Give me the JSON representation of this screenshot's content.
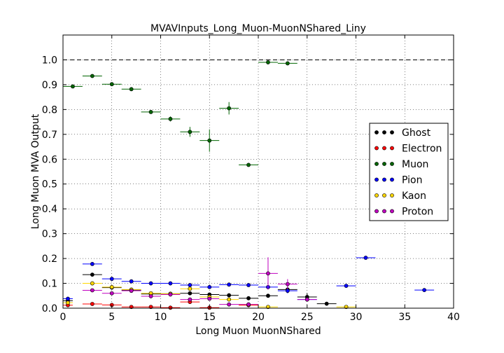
{
  "chart_data": {
    "type": "scatter",
    "title": "MVAVInputs_Long_Muon-MuonNShared_Liny",
    "xlabel": "Long Muon MuonNShared",
    "ylabel": "Long Muon MVA Output",
    "xlim": [
      0,
      40
    ],
    "ylim": [
      0,
      1.1
    ],
    "xticks": [
      "0",
      "5",
      "10",
      "15",
      "20",
      "25",
      "30",
      "35",
      "40"
    ],
    "yticks": [
      "0.0",
      "0.1",
      "0.2",
      "0.3",
      "0.4",
      "0.5",
      "0.6",
      "0.7",
      "0.8",
      "0.9",
      "1.0"
    ],
    "grid": true,
    "reference_line": 1.0,
    "legend_position": "right",
    "series": [
      {
        "name": "Ghost",
        "color": "#000000",
        "points": [
          {
            "x": 0.5,
            "xerr": 0.5,
            "y": 0.03,
            "yerr": 0.005
          },
          {
            "x": 3,
            "xerr": 1,
            "y": 0.135,
            "yerr": 0.005
          },
          {
            "x": 5,
            "xerr": 1,
            "y": 0.083,
            "yerr": 0.004
          },
          {
            "x": 7,
            "xerr": 1,
            "y": 0.073,
            "yerr": 0.004
          },
          {
            "x": 9,
            "xerr": 1,
            "y": 0.057,
            "yerr": 0.004
          },
          {
            "x": 11,
            "xerr": 1,
            "y": 0.058,
            "yerr": 0.004
          },
          {
            "x": 13,
            "xerr": 1,
            "y": 0.06,
            "yerr": 0.005
          },
          {
            "x": 15,
            "xerr": 1,
            "y": 0.055,
            "yerr": 0.006
          },
          {
            "x": 17,
            "xerr": 1,
            "y": 0.052,
            "yerr": 0.006
          },
          {
            "x": 19,
            "xerr": 1,
            "y": 0.04,
            "yerr": 0.006
          },
          {
            "x": 21,
            "xerr": 1,
            "y": 0.05,
            "yerr": 0.008
          },
          {
            "x": 23,
            "xerr": 1,
            "y": 0.075,
            "yerr": 0.01
          },
          {
            "x": 25,
            "xerr": 1,
            "y": 0.045,
            "yerr": 0.015
          },
          {
            "x": 27,
            "xerr": 1,
            "y": 0.018,
            "yerr": 0.005
          }
        ]
      },
      {
        "name": "Electron",
        "color": "#ff0000",
        "points": [
          {
            "x": 0.5,
            "xerr": 0.5,
            "y": 0.012,
            "yerr": 0.003
          },
          {
            "x": 3,
            "xerr": 1,
            "y": 0.017,
            "yerr": 0.003
          },
          {
            "x": 5,
            "xerr": 1,
            "y": 0.013,
            "yerr": 0.003
          },
          {
            "x": 7,
            "xerr": 1,
            "y": 0.005,
            "yerr": 0.002
          },
          {
            "x": 9,
            "xerr": 1,
            "y": 0.005,
            "yerr": 0.002
          },
          {
            "x": 11,
            "xerr": 1,
            "y": 0.002,
            "yerr": 0.002
          },
          {
            "x": 13,
            "xerr": 1,
            "y": 0.025,
            "yerr": 0.005
          },
          {
            "x": 15,
            "xerr": 1,
            "y": 0.002,
            "yerr": 0.002
          },
          {
            "x": 19,
            "xerr": 1,
            "y": 0.012,
            "yerr": 0.004
          }
        ]
      },
      {
        "name": "Muon",
        "color": "#006400",
        "points": [
          {
            "x": 1,
            "xerr": 1,
            "y": 0.893,
            "yerr": 0.005
          },
          {
            "x": 3,
            "xerr": 1,
            "y": 0.935,
            "yerr": 0.005
          },
          {
            "x": 5,
            "xerr": 1,
            "y": 0.902,
            "yerr": 0.005
          },
          {
            "x": 7,
            "xerr": 1,
            "y": 0.882,
            "yerr": 0.005
          },
          {
            "x": 9,
            "xerr": 1,
            "y": 0.79,
            "yerr": 0.007
          },
          {
            "x": 11,
            "xerr": 1,
            "y": 0.762,
            "yerr": 0.01
          },
          {
            "x": 13,
            "xerr": 1,
            "y": 0.71,
            "yerr": 0.02
          },
          {
            "x": 15,
            "xerr": 1,
            "y": 0.675,
            "yerr": 0.045
          },
          {
            "x": 17,
            "xerr": 1,
            "y": 0.805,
            "yerr": 0.025
          },
          {
            "x": 19,
            "xerr": 1,
            "y": 0.577,
            "yerr": 0.006
          },
          {
            "x": 21,
            "xerr": 1,
            "y": 0.99,
            "yerr": 0.006
          },
          {
            "x": 23,
            "xerr": 1,
            "y": 0.986,
            "yerr": 0.005
          }
        ]
      },
      {
        "name": "Pion",
        "color": "#0000ff",
        "points": [
          {
            "x": 0.5,
            "xerr": 0.5,
            "y": 0.038,
            "yerr": 0.004
          },
          {
            "x": 3,
            "xerr": 1,
            "y": 0.178,
            "yerr": 0.005
          },
          {
            "x": 5,
            "xerr": 1,
            "y": 0.118,
            "yerr": 0.004
          },
          {
            "x": 7,
            "xerr": 1,
            "y": 0.108,
            "yerr": 0.004
          },
          {
            "x": 9,
            "xerr": 1,
            "y": 0.1,
            "yerr": 0.004
          },
          {
            "x": 11,
            "xerr": 1,
            "y": 0.1,
            "yerr": 0.004
          },
          {
            "x": 13,
            "xerr": 1,
            "y": 0.093,
            "yerr": 0.005
          },
          {
            "x": 15,
            "xerr": 1,
            "y": 0.085,
            "yerr": 0.006
          },
          {
            "x": 17,
            "xerr": 1,
            "y": 0.095,
            "yerr": 0.006
          },
          {
            "x": 19,
            "xerr": 1,
            "y": 0.093,
            "yerr": 0.006
          },
          {
            "x": 21,
            "xerr": 1,
            "y": 0.085,
            "yerr": 0.008
          },
          {
            "x": 23,
            "xerr": 1,
            "y": 0.07,
            "yerr": 0.01
          },
          {
            "x": 25,
            "xerr": 1,
            "y": 0.035,
            "yerr": 0.008
          },
          {
            "x": 29,
            "xerr": 1,
            "y": 0.09,
            "yerr": 0.004
          },
          {
            "x": 31,
            "xerr": 1,
            "y": 0.203,
            "yerr": 0.004
          },
          {
            "x": 37,
            "xerr": 1,
            "y": 0.073,
            "yerr": 0.003
          }
        ]
      },
      {
        "name": "Kaon",
        "color": "#ffd700",
        "points": [
          {
            "x": 0.5,
            "xerr": 0.5,
            "y": 0.022,
            "yerr": 0.004
          },
          {
            "x": 3,
            "xerr": 1,
            "y": 0.1,
            "yerr": 0.004
          },
          {
            "x": 5,
            "xerr": 1,
            "y": 0.085,
            "yerr": 0.004
          },
          {
            "x": 7,
            "xerr": 1,
            "y": 0.075,
            "yerr": 0.004
          },
          {
            "x": 9,
            "xerr": 1,
            "y": 0.06,
            "yerr": 0.004
          },
          {
            "x": 11,
            "xerr": 1,
            "y": 0.058,
            "yerr": 0.004
          },
          {
            "x": 13,
            "xerr": 1,
            "y": 0.078,
            "yerr": 0.006
          },
          {
            "x": 15,
            "xerr": 1,
            "y": 0.045,
            "yerr": 0.006
          },
          {
            "x": 17,
            "xerr": 1,
            "y": 0.035,
            "yerr": 0.006
          },
          {
            "x": 19,
            "xerr": 1,
            "y": 0.015,
            "yerr": 0.005
          },
          {
            "x": 21,
            "xerr": 1,
            "y": 0.005,
            "yerr": 0.003
          },
          {
            "x": 29,
            "xerr": 1,
            "y": 0.005,
            "yerr": 0.003
          }
        ]
      },
      {
        "name": "Proton",
        "color": "#c000c0",
        "points": [
          {
            "x": 3,
            "xerr": 1,
            "y": 0.072,
            "yerr": 0.004
          },
          {
            "x": 5,
            "xerr": 1,
            "y": 0.06,
            "yerr": 0.004
          },
          {
            "x": 7,
            "xerr": 1,
            "y": 0.07,
            "yerr": 0.004
          },
          {
            "x": 9,
            "xerr": 1,
            "y": 0.048,
            "yerr": 0.004
          },
          {
            "x": 11,
            "xerr": 1,
            "y": 0.055,
            "yerr": 0.004
          },
          {
            "x": 13,
            "xerr": 1,
            "y": 0.035,
            "yerr": 0.006
          },
          {
            "x": 15,
            "xerr": 1,
            "y": 0.038,
            "yerr": 0.006
          },
          {
            "x": 17,
            "xerr": 1,
            "y": 0.015,
            "yerr": 0.005
          },
          {
            "x": 19,
            "xerr": 1,
            "y": 0.015,
            "yerr": 0.006
          },
          {
            "x": 21,
            "xerr": 1,
            "y": 0.14,
            "yerr": 0.065
          },
          {
            "x": 23,
            "xerr": 1,
            "y": 0.097,
            "yerr": 0.02
          },
          {
            "x": 25,
            "xerr": 1,
            "y": 0.035,
            "yerr": 0.008
          }
        ]
      }
    ]
  }
}
